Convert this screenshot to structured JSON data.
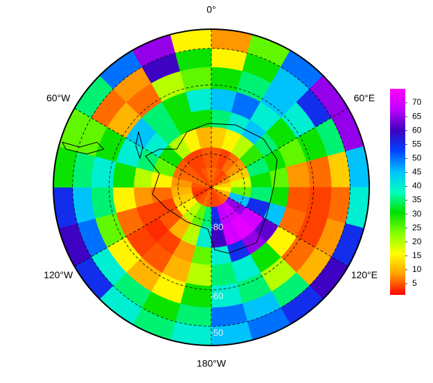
{
  "map": {
    "lat_edges": [
      -90,
      -84,
      -78,
      -72,
      -67,
      -61,
      -55,
      -50,
      -45
    ],
    "lon_edges": [
      0,
      15,
      30,
      45,
      60,
      75,
      90,
      105,
      120,
      135,
      150,
      165,
      180,
      195,
      210,
      225,
      240,
      255,
      270,
      285,
      300,
      315,
      330,
      345,
      360
    ],
    "values": [
      [
        6,
        5,
        4,
        5,
        8,
        12,
        15,
        10,
        6,
        5,
        4,
        4,
        5,
        6,
        5,
        4,
        3,
        4,
        5,
        6,
        5,
        4,
        5,
        6
      ],
      [
        5,
        4,
        6,
        8,
        12,
        18,
        25,
        45,
        65,
        70,
        68,
        55,
        35,
        25,
        20,
        15,
        12,
        10,
        8,
        6,
        5,
        4,
        4,
        5
      ],
      [
        12,
        15,
        20,
        28,
        35,
        30,
        35,
        55,
        70,
        72,
        70,
        60,
        40,
        20,
        10,
        5,
        4,
        6,
        15,
        25,
        30,
        20,
        15,
        10
      ],
      [
        35,
        40,
        45,
        35,
        30,
        25,
        30,
        45,
        62,
        65,
        55,
        40,
        25,
        8,
        4,
        3,
        4,
        8,
        20,
        35,
        40,
        35,
        30,
        30
      ],
      [
        45,
        50,
        40,
        30,
        25,
        8,
        5,
        6,
        15,
        30,
        40,
        35,
        20,
        10,
        5,
        4,
        6,
        15,
        30,
        40,
        45,
        35,
        30,
        40
      ],
      [
        30,
        35,
        45,
        40,
        30,
        6,
        4,
        4,
        6,
        20,
        35,
        40,
        30,
        15,
        10,
        15,
        25,
        35,
        40,
        30,
        10,
        6,
        20,
        25
      ],
      [
        15,
        30,
        45,
        55,
        35,
        12,
        6,
        8,
        10,
        35,
        45,
        50,
        35,
        30,
        35,
        40,
        50,
        45,
        35,
        25,
        6,
        8,
        60,
        30
      ],
      [
        8,
        25,
        50,
        65,
        65,
        45,
        40,
        55,
        60,
        55,
        50,
        45,
        40,
        35,
        40,
        55,
        60,
        55,
        30,
        25,
        35,
        50,
        65,
        15
      ]
    ],
    "meridians": [
      {
        "value": 0,
        "label": "0°"
      },
      {
        "value": 60,
        "label": "60°E"
      },
      {
        "value": 120,
        "label": "120°E"
      },
      {
        "value": 180,
        "label": "180°W"
      },
      {
        "value": 240,
        "label": "120°W"
      },
      {
        "value": 300,
        "label": "60°W"
      }
    ],
    "parallels": [
      {
        "value": -80,
        "label": "-80"
      },
      {
        "value": -60,
        "label": "-60"
      },
      {
        "value": -50,
        "label": "-50"
      }
    ]
  },
  "colorbar": {
    "zlim": [
      1,
      75
    ],
    "ticks": [
      5,
      10,
      15,
      20,
      25,
      30,
      35,
      40,
      45,
      50,
      55,
      60,
      65,
      70
    ],
    "colors": [
      "#ff0000",
      "#ffa000",
      "#ffff00",
      "#80ff00",
      "#00e000",
      "#00ffc0",
      "#00c0ff",
      "#0040ff",
      "#4000c0",
      "#c000ff",
      "#ff00ff"
    ]
  }
}
